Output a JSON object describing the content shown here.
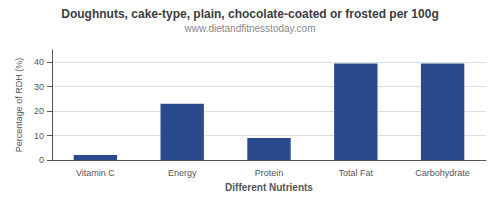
{
  "chart_data": {
    "type": "bar",
    "title": "Doughnuts, cake-type, plain, chocolate-coated or frosted per 100g",
    "subtitle": "www.dietandfitnesstoday.com",
    "categories": [
      "Vitamin C",
      "Energy",
      "Protein",
      "Total Fat",
      "Carbohydrate"
    ],
    "values": [
      2.0,
      23.0,
      9.0,
      39.5,
      39.5
    ],
    "color": "#2b4a8e",
    "xlabel": "Different Nutrients",
    "ylabel": "Percentage of RDH (%)",
    "ylim": [
      0,
      45
    ],
    "yticks": [
      0,
      10,
      20,
      30,
      40
    ],
    "grid": true
  }
}
